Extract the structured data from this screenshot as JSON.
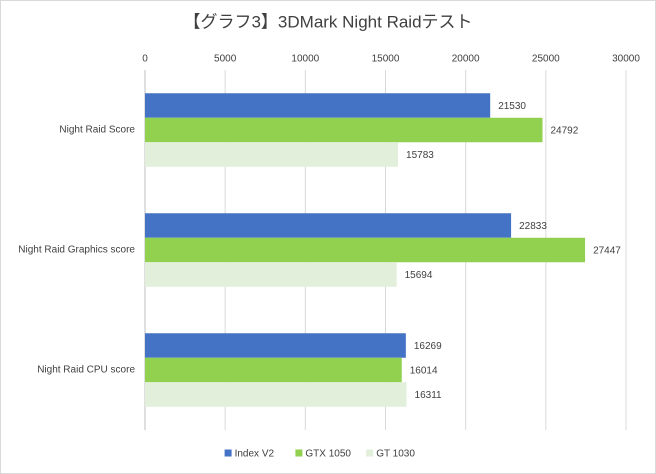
{
  "chart_data": {
    "type": "bar",
    "orientation": "horizontal",
    "title": "【グラフ3】3DMark Night Raidテスト",
    "categories": [
      "Night Raid Score",
      "Night Raid Graphics score",
      "Night Raid CPU score"
    ],
    "series": [
      {
        "name": "Index V2",
        "color": "#4472c4",
        "values": [
          21530,
          22833,
          16269
        ]
      },
      {
        "name": "GTX 1050",
        "color": "#92d050",
        "values": [
          24792,
          27447,
          16014
        ]
      },
      {
        "name": "GT 1030",
        "color": "#e2efda",
        "values": [
          15783,
          15694,
          16311
        ]
      }
    ],
    "xlim": [
      0,
      30000
    ],
    "xticks": [
      0,
      5000,
      10000,
      15000,
      20000,
      25000,
      30000
    ],
    "grid": true,
    "legend": "bottom"
  }
}
